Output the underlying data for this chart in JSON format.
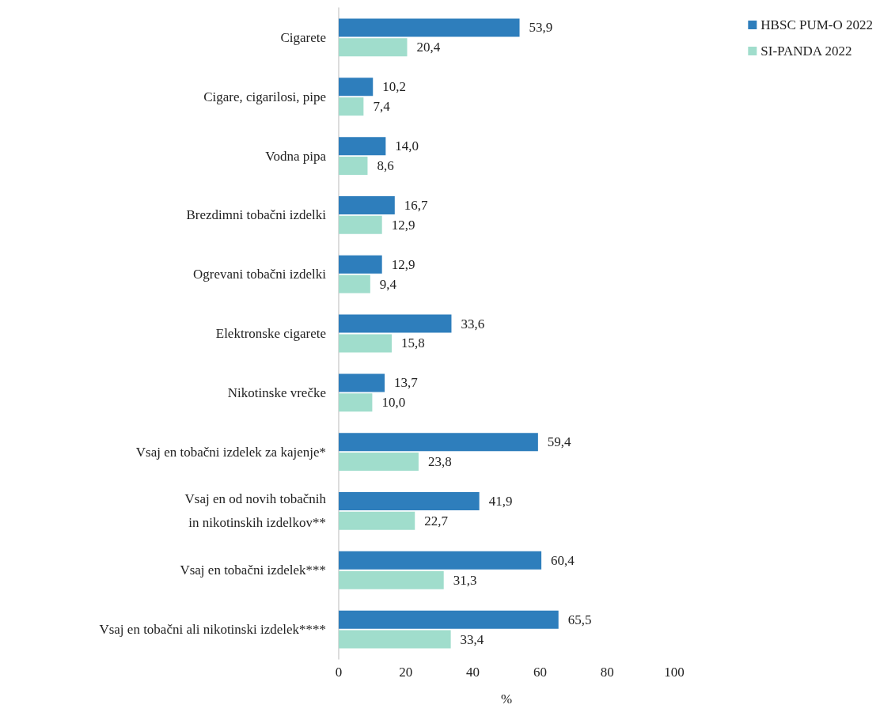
{
  "chart_data": {
    "type": "bar",
    "orientation": "horizontal",
    "xlabel": "%",
    "categories": [
      "Cigarete",
      "Cigare, cigarilosi, pipe",
      "Vodna pipa",
      "Brezdimni tobačni izdelki",
      "Ogrevani tobačni izdelki",
      "Elektronske cigarete",
      "Nikotinske vrečke",
      "Vsaj en tobačni izdelek za kajenje*",
      "Vsaj en od novih tobačnih\nin nikotinskih izdelkov**",
      "Vsaj en tobačni izdelek***",
      "Vsaj en tobačni ali nikotinski izdelek****"
    ],
    "series": [
      {
        "name": "HBSC PUM-O 2022",
        "color": "#2e7ebc",
        "values": [
          53.9,
          10.2,
          14.0,
          16.7,
          12.9,
          33.6,
          13.7,
          59.4,
          41.9,
          60.4,
          65.5
        ],
        "value_labels": [
          "53,9",
          "10,2",
          "14,0",
          "16,7",
          "12,9",
          "33,6",
          "13,7",
          "59,4",
          "41,9",
          "60,4",
          "65,5"
        ]
      },
      {
        "name": "SI-PANDA 2022",
        "color": "#a0ddcc",
        "values": [
          20.4,
          7.4,
          8.6,
          12.9,
          9.4,
          15.8,
          10.0,
          23.8,
          22.7,
          31.3,
          33.4
        ],
        "value_labels": [
          "20,4",
          "7,4",
          "8,6",
          "12,9",
          "9,4",
          "15,8",
          "10,0",
          "23,8",
          "22,7",
          "31,3",
          "33,4"
        ]
      }
    ],
    "xlim": [
      0,
      100
    ],
    "xticks": [
      0,
      20,
      40,
      60,
      80,
      100
    ],
    "grid": false,
    "legend": "top right"
  }
}
